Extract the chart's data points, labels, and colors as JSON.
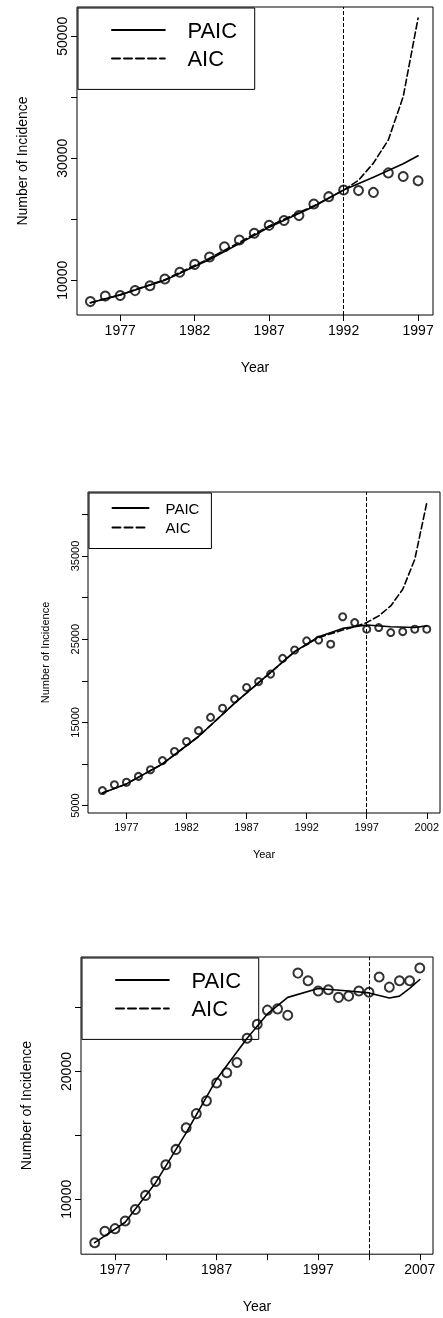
{
  "chart_data": [
    {
      "type": "scatter",
      "xlabel": "Year",
      "ylabel": "Number of Incidence",
      "xlim": [
        1974.1,
        1998
      ],
      "ylim": [
        4300,
        54800
      ],
      "xticks": [
        1977,
        1982,
        1987,
        1992,
        1997
      ],
      "yticks": [
        10000,
        {
          "value": 20000,
          "label": null
        },
        30000,
        {
          "value": 40000,
          "label": null
        },
        50000
      ],
      "grid": false,
      "legend": "top left",
      "ref_lines": [
        {
          "axis": "x",
          "value": 1992,
          "color": "#000000",
          "line_style": "dashed"
        }
      ],
      "series": [
        {
          "type": "scatter",
          "marker": "circle",
          "color": "#000000",
          "x": [
            1975,
            1976,
            1977,
            1978,
            1979,
            1980,
            1981,
            1982,
            1983,
            1984,
            1985,
            1986,
            1987,
            1988,
            1989,
            1990,
            1991,
            1992,
            1993,
            1994,
            1995,
            1996,
            1997
          ],
          "values": [
            6500,
            7400,
            7500,
            8300,
            9100,
            10200,
            11300,
            12600,
            13800,
            15500,
            16600,
            17700,
            19000,
            19800,
            20600,
            22500,
            23700,
            24800,
            24700,
            24400,
            27600,
            27000,
            26300
          ]
        },
        {
          "type": "line",
          "name": "PAIC",
          "marker": "none",
          "line_style": "solid",
          "color": "#000000",
          "x": [
            1975,
            1977,
            1980,
            1983,
            1985,
            1987,
            1990,
            1992,
            1994,
            1996,
            1997
          ],
          "values": [
            6300,
            7600,
            10000,
            13400,
            16000,
            18700,
            22100,
            24800,
            26900,
            29100,
            30400
          ]
        },
        {
          "type": "line",
          "name": "AIC",
          "marker": "none",
          "line_style": "dashed",
          "color": "#000000",
          "x": [
            1975,
            1977,
            1980,
            1983,
            1985,
            1987,
            1990,
            1992,
            1993,
            1994,
            1995,
            1996,
            1997
          ],
          "values": [
            6300,
            7600,
            10100,
            13600,
            16200,
            18900,
            22200,
            24800,
            26400,
            29200,
            33000,
            40100,
            53000
          ]
        }
      ]
    },
    {
      "type": "scatter",
      "xlabel": "Year",
      "ylabel": "Number of Incidence",
      "xlim": [
        1973.8,
        2003.1
      ],
      "ylim": [
        4100,
        42700
      ],
      "xticks": [
        1977,
        1982,
        1987,
        1992,
        1997,
        2002
      ],
      "yticks": [
        5000,
        {
          "value": 10000,
          "label": null
        },
        15000,
        {
          "value": 20000,
          "label": null
        },
        25000,
        {
          "value": 30000,
          "label": null
        },
        35000,
        {
          "value": 40000,
          "label": null
        }
      ],
      "grid": false,
      "legend": "top left",
      "ref_lines": [
        {
          "axis": "x",
          "value": 1997,
          "color": "#000000",
          "line_style": "dashed"
        }
      ],
      "series": [
        {
          "type": "scatter",
          "marker": "circle",
          "color": "#000000",
          "x": [
            1975,
            1976,
            1977,
            1978,
            1979,
            1980,
            1981,
            1982,
            1983,
            1984,
            1985,
            1986,
            1987,
            1988,
            1989,
            1990,
            1991,
            1992,
            1993,
            1994,
            1995,
            1996,
            1997,
            1998,
            1999,
            2000,
            2001,
            2002
          ],
          "values": [
            6800,
            7500,
            7800,
            8500,
            9300,
            10400,
            11500,
            12700,
            14000,
            15600,
            16700,
            17800,
            19200,
            19900,
            20800,
            22700,
            23700,
            24800,
            24900,
            24400,
            27700,
            27000,
            26200,
            26400,
            25800,
            25900,
            26200,
            26200
          ]
        },
        {
          "type": "line",
          "name": "PAIC",
          "marker": "none",
          "line_style": "solid",
          "color": "#000000",
          "x": [
            1975,
            1977,
            1980,
            1983,
            1986,
            1989,
            1991,
            1993,
            1995,
            1997,
            1999,
            2001,
            2002
          ],
          "values": [
            6500,
            7600,
            10000,
            13300,
            17300,
            21000,
            23500,
            25300,
            26300,
            26700,
            26500,
            26400,
            26600
          ]
        },
        {
          "type": "line",
          "name": "AIC",
          "marker": "none",
          "line_style": "dashed",
          "color": "#000000",
          "x": [
            1975,
            1977,
            1980,
            1983,
            1986,
            1989,
            1991,
            1993,
            1995,
            1996,
            1997,
            1998,
            1999,
            2000,
            2001,
            2002
          ],
          "values": [
            6500,
            7600,
            10000,
            13300,
            17300,
            21000,
            23500,
            25200,
            26100,
            26500,
            27000,
            27800,
            29000,
            31000,
            34600,
            41400
          ]
        }
      ]
    },
    {
      "type": "scatter",
      "xlabel": "Year",
      "ylabel": "Number of Incidence",
      "xlim": [
        1973.65,
        2008.3
      ],
      "ylim": [
        5700,
        28960
      ],
      "xticks": [
        1977,
        {
          "value": 1982,
          "label": null
        },
        1987,
        {
          "value": 1992,
          "label": null
        },
        1997,
        {
          "value": 2002,
          "label": null
        },
        2007
      ],
      "yticks": [
        10000,
        {
          "value": 15000,
          "label": null
        },
        20000,
        {
          "value": 25000,
          "label": null
        }
      ],
      "grid": false,
      "legend": "top left",
      "ref_lines": [
        {
          "axis": "x",
          "value": 2002,
          "color": "#000000",
          "line_style": "dashed"
        }
      ],
      "series": [
        {
          "type": "scatter",
          "marker": "circle",
          "color": "#000000",
          "x": [
            1975,
            1976,
            1977,
            1978,
            1979,
            1980,
            1981,
            1982,
            1983,
            1984,
            1985,
            1986,
            1987,
            1988,
            1989,
            1990,
            1991,
            1992,
            1993,
            1994,
            1995,
            1996,
            1997,
            1998,
            1999,
            2000,
            2001,
            2002,
            2003,
            2004,
            2005,
            2006,
            2007
          ],
          "values": [
            6600,
            7500,
            7700,
            8300,
            9200,
            10300,
            11400,
            12700,
            13900,
            15600,
            16700,
            17700,
            19100,
            19900,
            20700,
            22600,
            23700,
            24800,
            24900,
            24400,
            27700,
            27100,
            26300,
            26400,
            25800,
            25900,
            26300,
            26200,
            27400,
            26600,
            27100,
            27100,
            28100
          ]
        },
        {
          "type": "line",
          "name": "PAIC",
          "marker": "none",
          "line_style": "solid",
          "color": "#000000",
          "x": [
            1975,
            1978,
            1981,
            1984,
            1987,
            1990,
            1992,
            1994,
            1997,
            2000,
            2002,
            2004,
            2005,
            2006,
            2007
          ],
          "values": [
            6600,
            8200,
            11300,
            15200,
            19400,
            22600,
            24500,
            25800,
            26500,
            26300,
            26150,
            25750,
            25900,
            26500,
            27200
          ]
        },
        {
          "type": "line",
          "name": "AIC",
          "marker": "none",
          "line_style": "dashed",
          "color": "#000000"
        }
      ]
    }
  ]
}
